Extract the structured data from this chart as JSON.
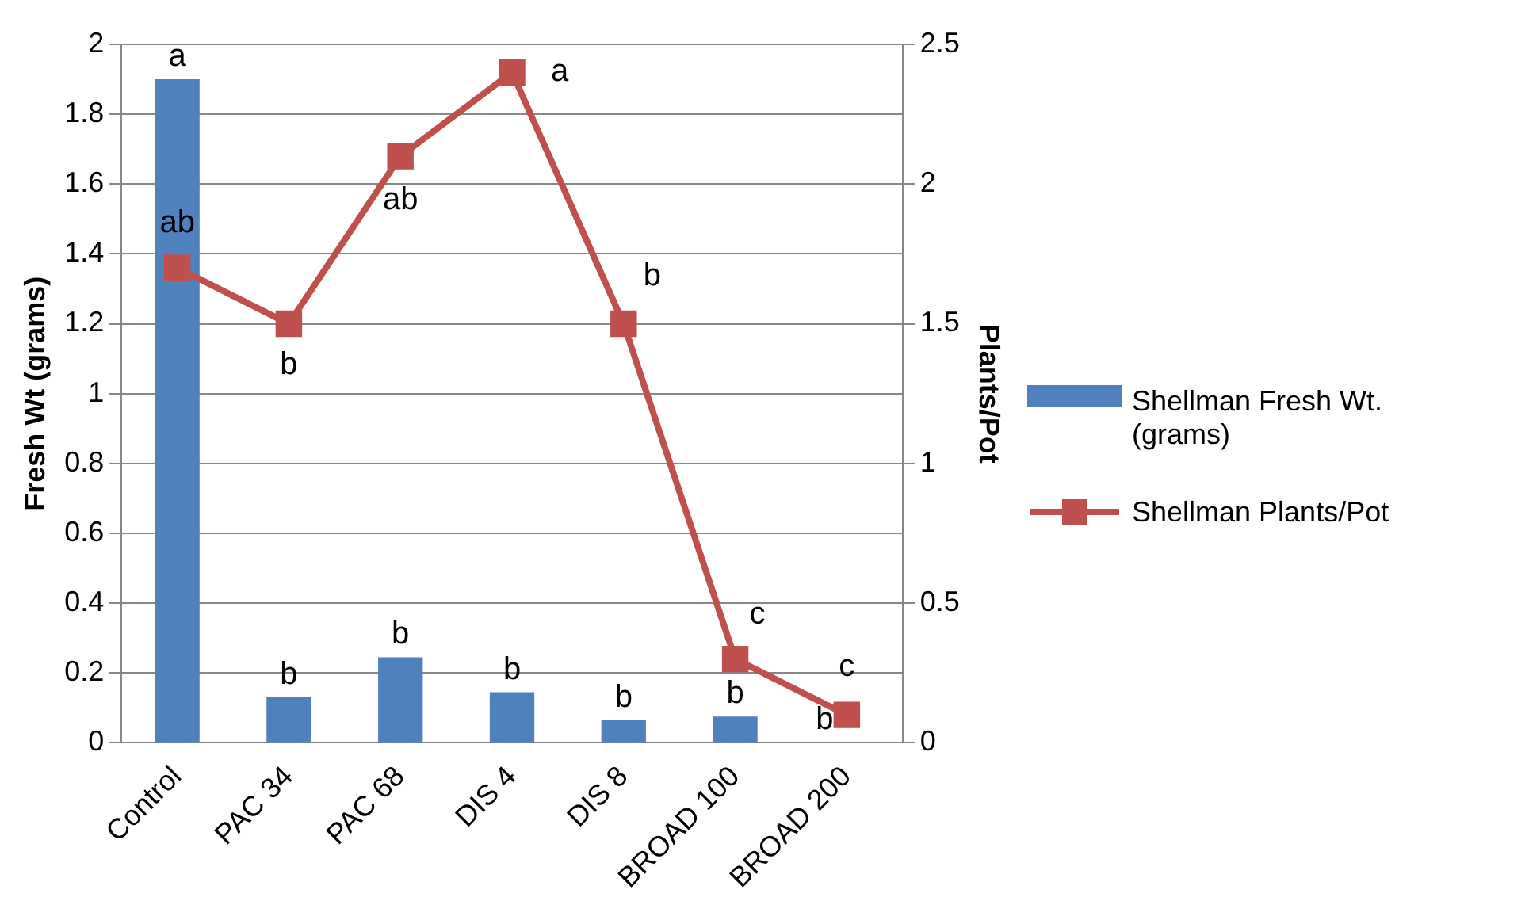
{
  "chart_data": {
    "type": "bar",
    "categories": [
      "Control",
      "PAC 34",
      "PAC 68",
      "DIS 4",
      "DIS 8",
      "BROAD 100",
      "BROAD 200"
    ],
    "ylabel": "Fresh Wt (grams)",
    "y2label": "Plants/Pot",
    "series": [
      {
        "name": "Shellman Fresh Wt. (grams)",
        "color": "#4f81bd",
        "values": [
          1.9,
          0.13,
          0.245,
          0.145,
          0.065,
          0.075,
          0
        ],
        "value_labels": [
          "a",
          "b",
          "b",
          "b",
          "b",
          "b",
          "b"
        ]
      },
      {
        "name": "Shellman Plants/Pot",
        "type": "line",
        "axis": "y2",
        "color": "#c0504d",
        "marker": "square",
        "values": [
          1.7,
          1.5,
          2.1,
          2.4,
          1.5,
          0.3,
          0.1
        ],
        "value_labels": [
          "ab",
          "b",
          "ab",
          "a",
          "b",
          "c",
          "c"
        ]
      }
    ],
    "ylim": [
      0,
      2
    ],
    "yticks": [
      {
        "value": 0,
        "label": "0"
      },
      0.2,
      0.4,
      0.6,
      0.8,
      1,
      1.2,
      1.4,
      1.6,
      1.8,
      2
    ],
    "y2lim": [
      0,
      2.5
    ],
    "y2ticks": [
      0,
      0.5,
      1,
      1.5,
      2,
      2.5
    ],
    "grid": "y",
    "legend": "right"
  }
}
